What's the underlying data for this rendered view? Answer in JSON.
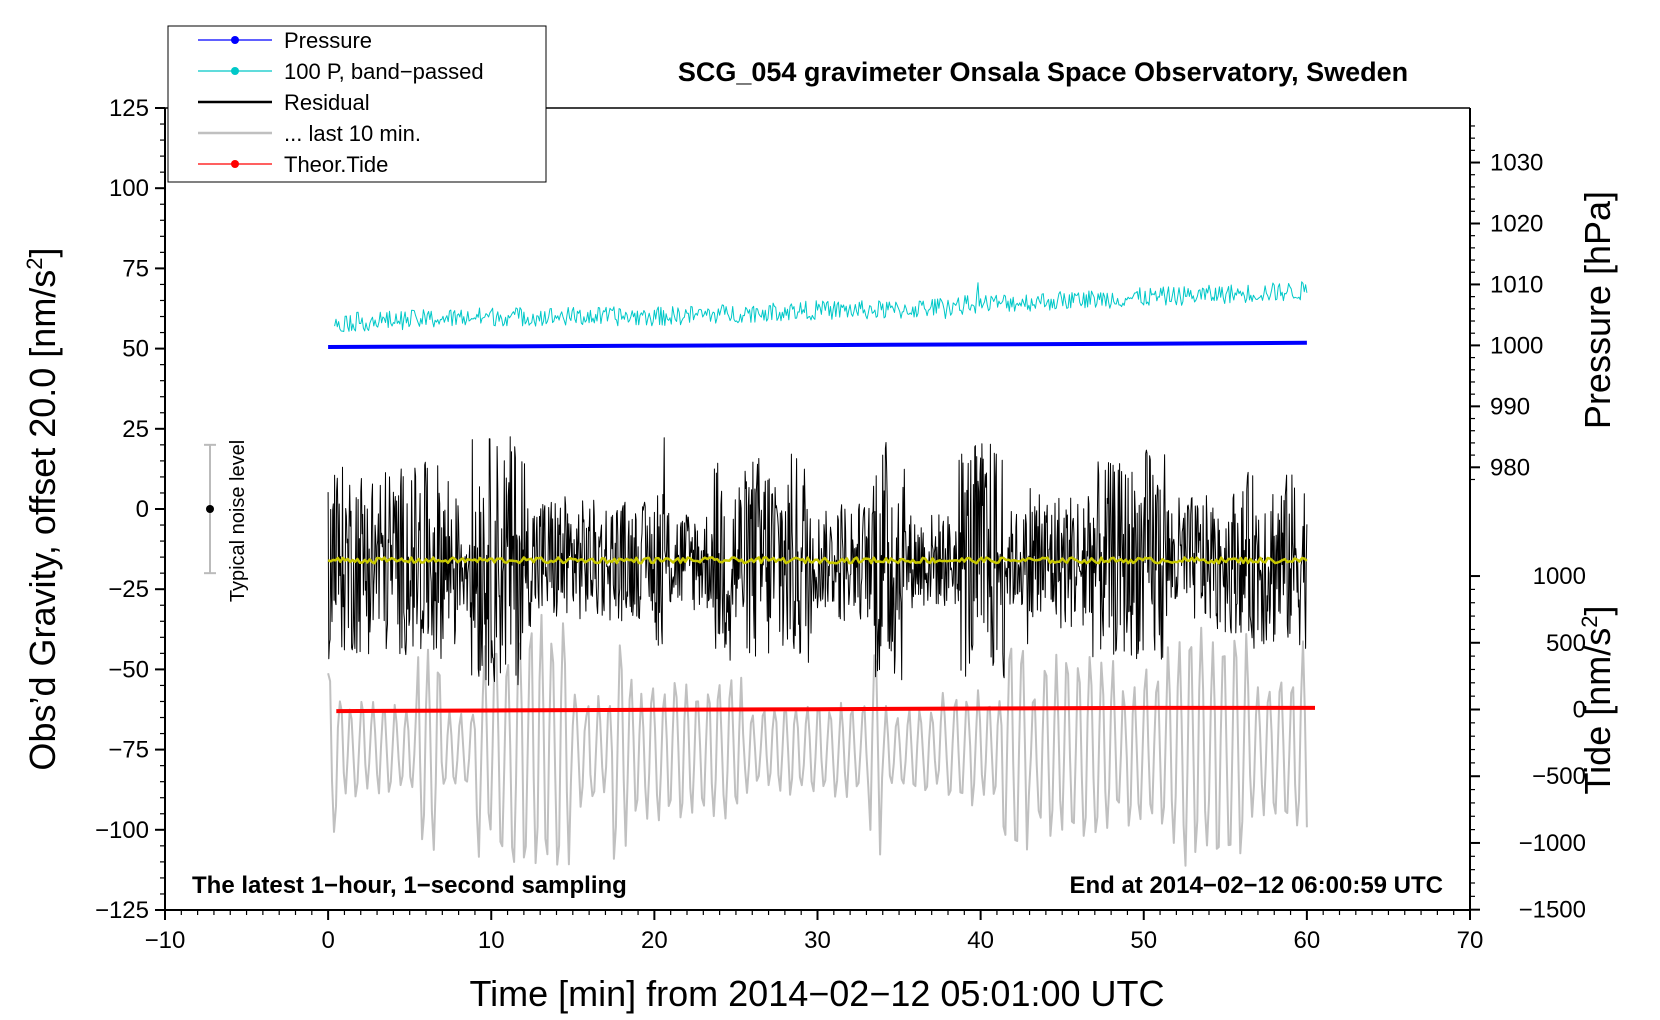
{
  "chart_data": {
    "type": "line",
    "title": "SCG_054 gravimeter Onsala Space Observatory, Sweden",
    "xlabel": "Time [min] from 2014−02−12 05:01:00 UTC",
    "ylabel": "Obs’d Gravity, offset 20.0 [nm/s",
    "ylabel_sup": "2",
    "ylabel_close": "]",
    "right_pressure_label": "Pressure [hPa]",
    "right_tide_label": "Tide [nm/s",
    "right_tide_sup": "2",
    "right_tide_close": "]",
    "note_left": "The latest 1−hour, 1−second sampling",
    "note_right": "End at 2014−02−12 06:00:59 UTC",
    "noise_label": "Typical noise level",
    "noise_bar": {
      "center": 0,
      "half_width": 20
    },
    "xlim": [
      -10,
      70
    ],
    "ylim": [
      -125,
      125
    ],
    "x_ticks": [
      -10,
      0,
      10,
      20,
      30,
      40,
      50,
      60,
      70
    ],
    "x_tick_labels": [
      "−10",
      "0",
      "10",
      "20",
      "30",
      "40",
      "50",
      "60",
      "70"
    ],
    "y_ticks": [
      125,
      100,
      75,
      50,
      25,
      0,
      -25,
      -50,
      -75,
      -100,
      -125
    ],
    "y_tick_labels": [
      "125",
      "100",
      "75",
      "50",
      "25",
      "0",
      "−25",
      "−50",
      "−75",
      "−100",
      "−125"
    ],
    "pressure_axis": {
      "ticks": [
        1030,
        1020,
        1010,
        1000,
        990,
        980
      ],
      "tick_labels": [
        "1030",
        "1020",
        "1010",
        "1000",
        "990",
        "980"
      ],
      "gravity_at_1000": 51,
      "gravity_per_hpa": 1.9
    },
    "tide_axis": {
      "ticks": [
        1000,
        500,
        0,
        -500,
        -1000,
        -1500
      ],
      "tick_labels": [
        "1000",
        "500",
        "0",
        "−500",
        "−1000",
        "−1500"
      ],
      "gravity_at_0": -62.5,
      "gravity_per_unit": 0.0416
    },
    "series": [
      {
        "name": "Pressure",
        "color": "#0000ff",
        "style": "line-dot",
        "x": [
          0,
          10,
          20,
          30,
          40,
          50,
          60
        ],
        "y": [
          50.5,
          50.7,
          50.9,
          51.1,
          51.3,
          51.5,
          51.8
        ]
      },
      {
        "name": "100 P, band−passed",
        "color": "#00c8c8",
        "style": "line-dot",
        "x": [
          0,
          5,
          10,
          15,
          20,
          25,
          30,
          35,
          40,
          45,
          50,
          55,
          60
        ],
        "y": [
          58,
          59,
          60,
          60,
          60,
          61,
          62,
          62,
          64,
          65,
          66,
          67,
          68
        ]
      },
      {
        "name": "Residual",
        "color": "#000000",
        "style": "line",
        "x": [
          0,
          5,
          10,
          15,
          20,
          25,
          30,
          35,
          40,
          45,
          50,
          55,
          60
        ],
        "y": [
          -16,
          -16,
          -16,
          -16,
          -16,
          -16,
          -16,
          -16,
          -16,
          -16,
          -16,
          -16,
          -16
        ],
        "amplitude_min": 15,
        "amplitude_max": 47
      },
      {
        "name": "... last 10 min.",
        "color": "#c0c0c0",
        "style": "line",
        "x": [
          0,
          5,
          10,
          15,
          20,
          25,
          30,
          35,
          40,
          45,
          50,
          55,
          60
        ],
        "y": [
          -75,
          -75,
          -75,
          -75,
          -75,
          -75,
          -75,
          -75,
          -75,
          -75,
          -75,
          -75,
          -75
        ],
        "amplitude_min": 12,
        "amplitude_max": 48
      },
      {
        "name": "Theor.Tide",
        "color": "#ff0000",
        "style": "line-dot",
        "x": [
          0.5,
          10,
          20,
          30,
          40,
          50,
          60.5
        ],
        "y": [
          -63,
          -62.8,
          -62.6,
          -62.4,
          -62.2,
          -62,
          -62
        ]
      },
      {
        "name": "Smoothed residual",
        "color": "#c8c800",
        "style": "line",
        "legend": false,
        "x": [
          0,
          10,
          20,
          30,
          40,
          50,
          60
        ],
        "y": [
          -16,
          -16,
          -16,
          -16,
          -16,
          -16,
          -16
        ]
      }
    ]
  }
}
